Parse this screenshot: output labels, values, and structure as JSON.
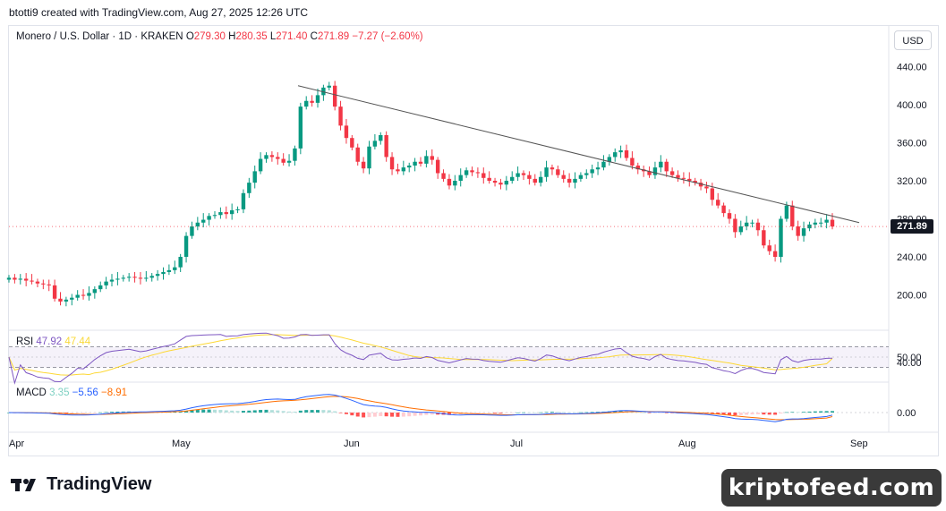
{
  "credit": "btotti9 created with TradingView.com, Aug 27, 2025 12:26 UTC",
  "symbol_line": "Monero / U.S. Dollar · 1D · KRAKEN",
  "ohlc": {
    "o_label": "O",
    "o": "279.30",
    "h_label": "H",
    "h": "280.35",
    "l_label": "L",
    "l": "271.40",
    "c_label": "C",
    "c": "271.89",
    "change": "−7.27 (−2.60%)"
  },
  "currency_button": "USD",
  "last_price": "271.89",
  "price_axis": [
    "440.00",
    "400.00",
    "360.00",
    "320.00",
    "280.00",
    "240.00",
    "200.00"
  ],
  "rsi": {
    "label": "RSI",
    "value": "47.92",
    "ma": "47.44",
    "axis": [
      "50.00",
      "40.00"
    ]
  },
  "macd": {
    "label": "MACD",
    "hist": "3.35",
    "macd": "−5.56",
    "signal": "−8.91",
    "axis": [
      "0.00"
    ]
  },
  "time_axis": [
    "Apr",
    "May",
    "Jun",
    "Jul",
    "Aug",
    "Sep"
  ],
  "brand": "TradingView",
  "watermark": "kriptofeed.com",
  "colors": {
    "up": "#089981",
    "down": "#f23645",
    "rsi": "#7e57c2",
    "rsi_ma": "#fdd835",
    "macd": "#2962ff",
    "signal": "#ff6d00"
  },
  "chart_data": {
    "type": "candlestick",
    "title": "Monero / U.S. Dollar · 1D · KRAKEN",
    "ylim": [
      160,
      450
    ],
    "x_labels": [
      "Apr",
      "May",
      "Jun",
      "Jul",
      "Aug",
      "Sep"
    ],
    "closes": [
      218,
      216,
      217,
      215,
      214,
      212,
      211,
      210,
      196,
      193,
      195,
      197,
      200,
      199,
      202,
      206,
      210,
      214,
      216,
      217,
      218,
      219,
      218,
      217,
      218,
      220,
      222,
      224,
      226,
      229,
      240,
      262,
      272,
      276,
      279,
      283,
      284,
      287,
      285,
      289,
      290,
      307,
      318,
      330,
      343,
      347,
      345,
      343,
      339,
      341,
      354,
      398,
      404,
      402,
      410,
      418,
      420,
      398,
      378,
      365,
      355,
      340,
      333,
      356,
      362,
      368,
      345,
      332,
      330,
      334,
      336,
      340,
      338,
      346,
      342,
      328,
      322,
      315,
      320,
      326,
      331,
      329,
      328,
      323,
      320,
      318,
      316,
      320,
      324,
      328,
      326,
      322,
      318,
      324,
      334,
      332,
      326,
      322,
      318,
      322,
      326,
      328,
      332,
      334,
      340,
      345,
      350,
      352,
      344,
      336,
      332,
      330,
      326,
      334,
      340,
      330,
      326,
      323,
      322,
      320,
      318,
      314,
      312,
      300,
      294,
      286,
      280,
      266,
      272,
      276,
      276,
      268,
      252,
      246,
      240,
      280,
      294,
      272,
      262,
      270,
      274,
      276,
      276,
      279,
      271.89
    ],
    "trendline": {
      "from": 420,
      "to": 276
    },
    "rsi_current": 47.92,
    "rsi_ma_current": 47.44,
    "macd_current": {
      "histogram": 3.35,
      "macd": -5.56,
      "signal": -8.91
    }
  }
}
